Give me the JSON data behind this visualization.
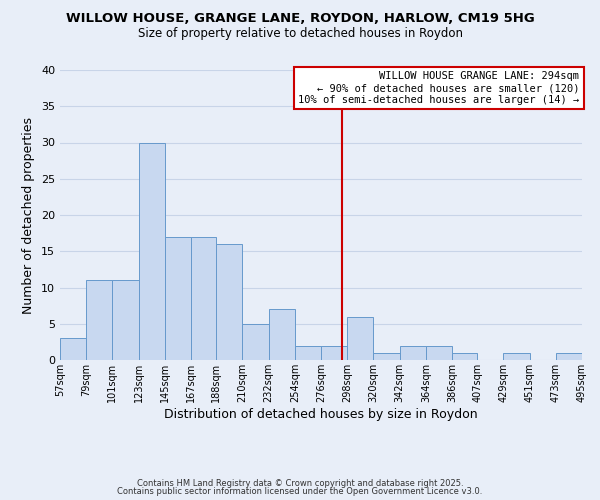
{
  "title": "WILLOW HOUSE, GRANGE LANE, ROYDON, HARLOW, CM19 5HG",
  "subtitle": "Size of property relative to detached houses in Roydon",
  "xlabel": "Distribution of detached houses by size in Roydon",
  "ylabel": "Number of detached properties",
  "bin_edges": [
    57,
    79,
    101,
    123,
    145,
    167,
    188,
    210,
    232,
    254,
    276,
    298,
    320,
    342,
    364,
    386,
    407,
    429,
    451,
    473,
    495
  ],
  "counts": [
    3,
    11,
    11,
    30,
    17,
    17,
    16,
    5,
    7,
    2,
    2,
    6,
    1,
    2,
    2,
    1,
    0,
    1,
    0,
    1
  ],
  "bar_color": "#c8d8f0",
  "bar_edge_color": "#6699cc",
  "vline_x": 294,
  "vline_color": "#cc0000",
  "ylim": [
    0,
    40
  ],
  "yticks": [
    0,
    5,
    10,
    15,
    20,
    25,
    30,
    35,
    40
  ],
  "tick_labels": [
    "57sqm",
    "79sqm",
    "101sqm",
    "123sqm",
    "145sqm",
    "167sqm",
    "188sqm",
    "210sqm",
    "232sqm",
    "254sqm",
    "276sqm",
    "298sqm",
    "320sqm",
    "342sqm",
    "364sqm",
    "386sqm",
    "407sqm",
    "429sqm",
    "451sqm",
    "473sqm",
    "495sqm"
  ],
  "annotation_title": "WILLOW HOUSE GRANGE LANE: 294sqm",
  "annotation_line1": "← 90% of detached houses are smaller (120)",
  "annotation_line2": "10% of semi-detached houses are larger (14) →",
  "footer1": "Contains HM Land Registry data © Crown copyright and database right 2025.",
  "footer2": "Contains public sector information licensed under the Open Government Licence v3.0.",
  "bg_color": "#e8eef8",
  "grid_color": "#c8d4e8"
}
